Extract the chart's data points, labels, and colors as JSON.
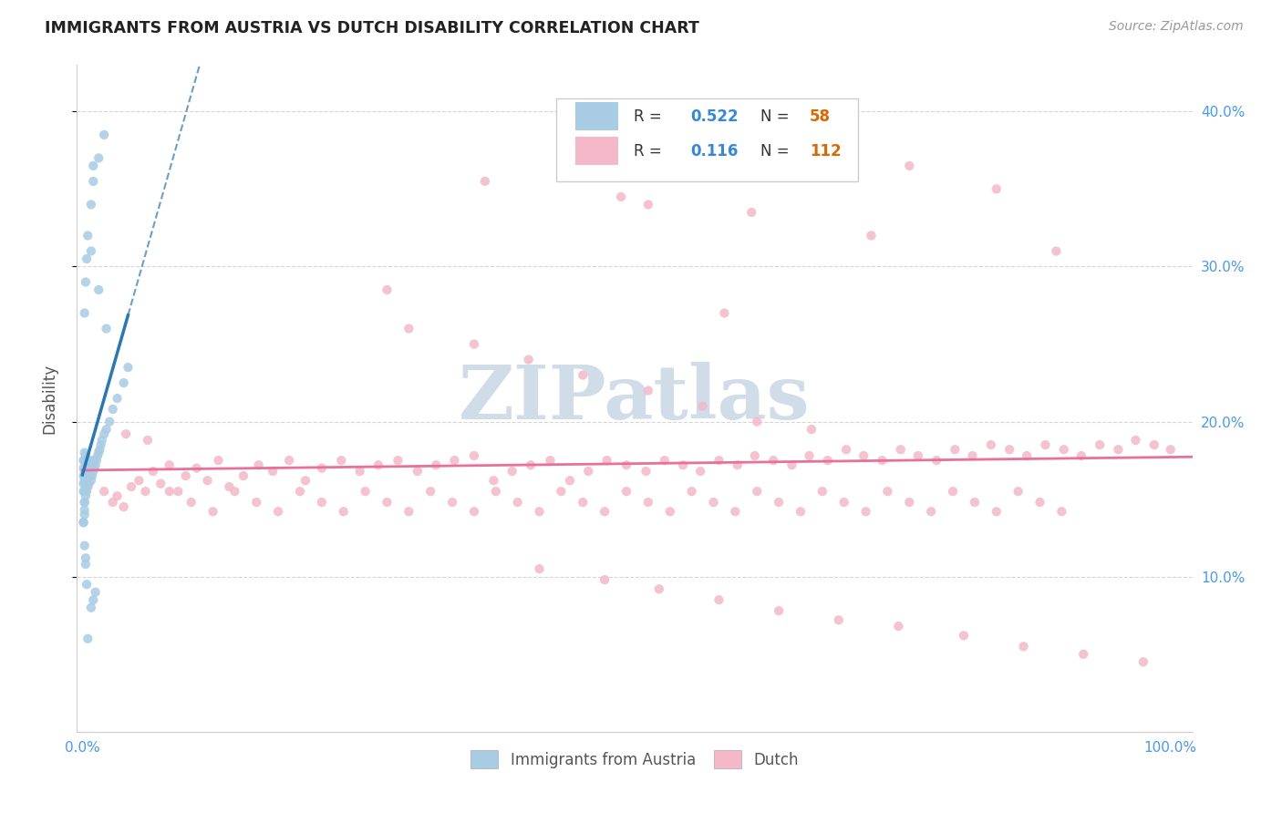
{
  "title": "IMMIGRANTS FROM AUSTRIA VS DUTCH DISABILITY CORRELATION CHART",
  "source": "Source: ZipAtlas.com",
  "ylabel": "Disability",
  "watermark_zip": "ZIP",
  "watermark_atlas": "atlas",
  "xlim": [
    -0.005,
    1.02
  ],
  "ylim": [
    0.0,
    0.43
  ],
  "xtick_positions": [
    0.0,
    0.2,
    0.4,
    0.6,
    0.8,
    1.0
  ],
  "xtick_labels": [
    "0.0%",
    "",
    "",
    "",
    "",
    "100.0%"
  ],
  "ytick_positions": [
    0.1,
    0.2,
    0.3,
    0.4
  ],
  "ytick_labels": [
    "10.0%",
    "20.0%",
    "30.0%",
    "40.0%"
  ],
  "austria_R": 0.522,
  "austria_N": 58,
  "dutch_R": 0.116,
  "dutch_N": 112,
  "austria_color": "#a8cce4",
  "dutch_color": "#f4b8c8",
  "austria_line_color": "#2878b8",
  "dutch_line_color": "#e8709a",
  "background_color": "#ffffff",
  "grid_color": "#cccccc",
  "title_color": "#222222",
  "source_color": "#999999",
  "axis_label_color": "#555555",
  "tick_color": "#4499ff",
  "legend_R_color": "#3388dd",
  "legend_N_color": "#dd6600",
  "legend_text_color": "#333333",
  "watermark_color": "#d0dce8",
  "austria_x": [
    0.001,
    0.001,
    0.001,
    0.001,
    0.001,
    0.002,
    0.002,
    0.002,
    0.002,
    0.002,
    0.002,
    0.002,
    0.003,
    0.003,
    0.003,
    0.003,
    0.003,
    0.004,
    0.004,
    0.004,
    0.004,
    0.005,
    0.005,
    0.005,
    0.006,
    0.006,
    0.006,
    0.007,
    0.007,
    0.008,
    0.008,
    0.009,
    0.009,
    0.01,
    0.01,
    0.011,
    0.012,
    0.013,
    0.014,
    0.015,
    0.016,
    0.017,
    0.018,
    0.02,
    0.022,
    0.025,
    0.028,
    0.032,
    0.038,
    0.042,
    0.002,
    0.003,
    0.004,
    0.005,
    0.008,
    0.01,
    0.015,
    0.02
  ],
  "austria_y": [
    0.155,
    0.16,
    0.165,
    0.17,
    0.175,
    0.14,
    0.148,
    0.155,
    0.162,
    0.168,
    0.175,
    0.18,
    0.152,
    0.158,
    0.165,
    0.172,
    0.178,
    0.155,
    0.162,
    0.169,
    0.176,
    0.158,
    0.165,
    0.172,
    0.16,
    0.168,
    0.175,
    0.165,
    0.172,
    0.162,
    0.17,
    0.165,
    0.172,
    0.168,
    0.175,
    0.17,
    0.172,
    0.175,
    0.178,
    0.18,
    0.182,
    0.185,
    0.188,
    0.192,
    0.195,
    0.2,
    0.208,
    0.215,
    0.225,
    0.235,
    0.27,
    0.29,
    0.305,
    0.32,
    0.34,
    0.355,
    0.37,
    0.385
  ],
  "austria_y_outliers": [
    0.31,
    0.365,
    0.285,
    0.26,
    0.08,
    0.085,
    0.09,
    0.06,
    0.135,
    0.135,
    0.143,
    0.148,
    0.12,
    0.112,
    0.108,
    0.095
  ],
  "austria_x_outliers": [
    0.008,
    0.01,
    0.015,
    0.022,
    0.008,
    0.01,
    0.012,
    0.005,
    0.001,
    0.001,
    0.002,
    0.002,
    0.002,
    0.003,
    0.003,
    0.004
  ],
  "dutch_x": [
    0.02,
    0.028,
    0.032,
    0.038,
    0.045,
    0.052,
    0.058,
    0.065,
    0.072,
    0.08,
    0.088,
    0.095,
    0.105,
    0.115,
    0.125,
    0.135,
    0.148,
    0.162,
    0.175,
    0.19,
    0.205,
    0.22,
    0.238,
    0.255,
    0.272,
    0.29,
    0.308,
    0.325,
    0.342,
    0.36,
    0.378,
    0.395,
    0.412,
    0.43,
    0.448,
    0.465,
    0.482,
    0.5,
    0.518,
    0.535,
    0.552,
    0.568,
    0.585,
    0.602,
    0.618,
    0.635,
    0.652,
    0.668,
    0.685,
    0.702,
    0.718,
    0.735,
    0.752,
    0.768,
    0.785,
    0.802,
    0.818,
    0.835,
    0.852,
    0.868,
    0.885,
    0.902,
    0.918,
    0.935,
    0.952,
    0.968,
    0.985,
    1.0,
    0.04,
    0.06,
    0.08,
    0.1,
    0.12,
    0.14,
    0.16,
    0.18,
    0.2,
    0.22,
    0.24,
    0.26,
    0.28,
    0.3,
    0.32,
    0.34,
    0.36,
    0.38,
    0.4,
    0.42,
    0.44,
    0.46,
    0.48,
    0.5,
    0.52,
    0.54,
    0.56,
    0.58,
    0.6,
    0.62,
    0.64,
    0.66,
    0.68,
    0.7,
    0.72,
    0.74,
    0.76,
    0.78,
    0.8,
    0.82,
    0.84,
    0.86,
    0.88,
    0.9
  ],
  "dutch_y": [
    0.155,
    0.148,
    0.152,
    0.145,
    0.158,
    0.162,
    0.155,
    0.168,
    0.16,
    0.172,
    0.155,
    0.165,
    0.17,
    0.162,
    0.175,
    0.158,
    0.165,
    0.172,
    0.168,
    0.175,
    0.162,
    0.17,
    0.175,
    0.168,
    0.172,
    0.175,
    0.168,
    0.172,
    0.175,
    0.178,
    0.162,
    0.168,
    0.172,
    0.175,
    0.162,
    0.168,
    0.175,
    0.172,
    0.168,
    0.175,
    0.172,
    0.168,
    0.175,
    0.172,
    0.178,
    0.175,
    0.172,
    0.178,
    0.175,
    0.182,
    0.178,
    0.175,
    0.182,
    0.178,
    0.175,
    0.182,
    0.178,
    0.185,
    0.182,
    0.178,
    0.185,
    0.182,
    0.178,
    0.185,
    0.182,
    0.188,
    0.185,
    0.182,
    0.192,
    0.188,
    0.155,
    0.148,
    0.142,
    0.155,
    0.148,
    0.142,
    0.155,
    0.148,
    0.142,
    0.155,
    0.148,
    0.142,
    0.155,
    0.148,
    0.142,
    0.155,
    0.148,
    0.142,
    0.155,
    0.148,
    0.142,
    0.155,
    0.148,
    0.142,
    0.155,
    0.148,
    0.142,
    0.155,
    0.148,
    0.142,
    0.155,
    0.148,
    0.142,
    0.155,
    0.148,
    0.142,
    0.155,
    0.148,
    0.142,
    0.155,
    0.148,
    0.142
  ],
  "dutch_y_outliers": [
    0.355,
    0.345,
    0.285,
    0.27,
    0.38,
    0.365,
    0.35,
    0.34,
    0.335,
    0.32,
    0.31,
    0.26,
    0.25,
    0.24,
    0.23,
    0.22,
    0.21,
    0.2,
    0.195,
    0.105,
    0.098,
    0.092,
    0.085,
    0.078,
    0.072,
    0.068,
    0.062,
    0.055,
    0.05,
    0.045
  ],
  "dutch_x_outliers": [
    0.37,
    0.495,
    0.28,
    0.59,
    0.68,
    0.76,
    0.84,
    0.52,
    0.615,
    0.725,
    0.895,
    0.3,
    0.36,
    0.41,
    0.46,
    0.52,
    0.57,
    0.62,
    0.67,
    0.42,
    0.48,
    0.53,
    0.585,
    0.64,
    0.695,
    0.75,
    0.81,
    0.865,
    0.92,
    0.975
  ]
}
